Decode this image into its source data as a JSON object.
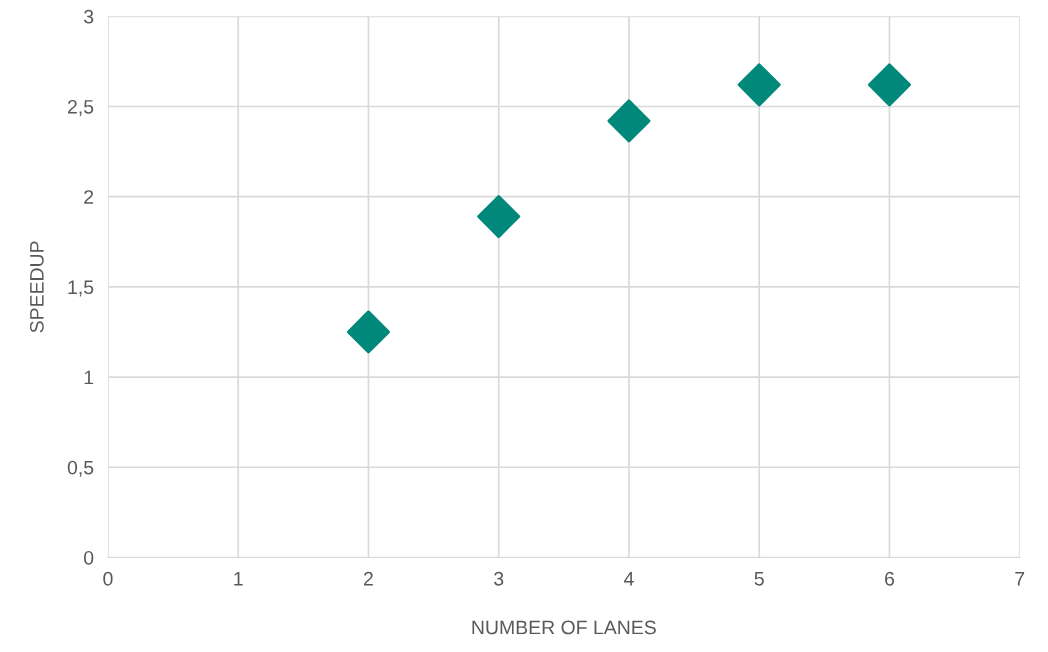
{
  "chart_data": {
    "type": "scatter",
    "xlabel": "NUMBER OF LANES",
    "ylabel": "SPEEDUP",
    "x": [
      2,
      3,
      4,
      5,
      6
    ],
    "series": [
      {
        "color": "#00897b",
        "values": [
          1.25,
          1.89,
          2.42,
          2.62,
          2.62
        ]
      }
    ],
    "xlim": [
      0,
      7
    ],
    "xticks": [
      0,
      1,
      2,
      3,
      4,
      5,
      6,
      7
    ],
    "ylim": [
      0,
      3
    ],
    "yticks": [
      0,
      {
        "value": 0.5,
        "label": "0,5"
      },
      1,
      {
        "value": 1.5,
        "label": "1,5"
      },
      2,
      {
        "value": 2.5,
        "label": "2,5"
      },
      3
    ],
    "grid": true,
    "marker": "diamond",
    "legend": false
  }
}
